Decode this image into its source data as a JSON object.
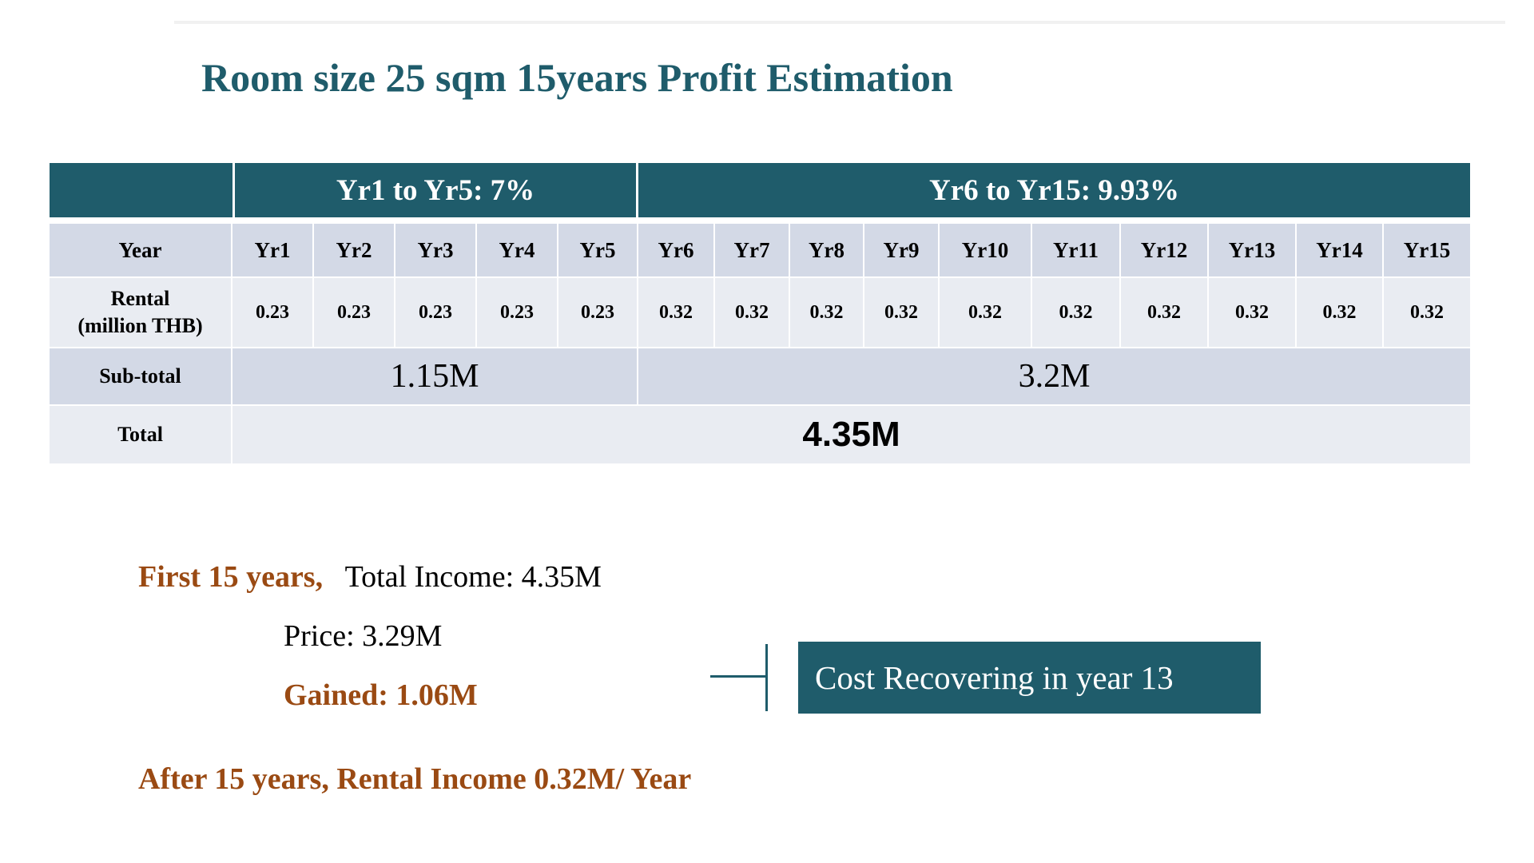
{
  "title": "Room size 25 sqm 15years Profit Estimation",
  "table": {
    "period_headers": [
      "Yr1 to Yr5: 7%",
      "Yr6 to Yr15: 9.93%"
    ],
    "year_label": "Year",
    "years": [
      "Yr1",
      "Yr2",
      "Yr3",
      "Yr4",
      "Yr5",
      "Yr6",
      "Yr7",
      "Yr8",
      "Yr9",
      "Yr10",
      "Yr11",
      "Yr12",
      "Yr13",
      "Yr14",
      "Yr15"
    ],
    "rental_label_line1": "Rental",
    "rental_label_line2": "(million THB)",
    "rental": [
      "0.23",
      "0.23",
      "0.23",
      "0.23",
      "0.23",
      "0.32",
      "0.32",
      "0.32",
      "0.32",
      "0.32",
      "0.32",
      "0.32",
      "0.32",
      "0.32",
      "0.32"
    ],
    "subtotal_label": "Sub-total",
    "subtotals": [
      "1.15M",
      "3.2M"
    ],
    "total_label": "Total",
    "total": "4.35M"
  },
  "summary": {
    "first_prefix": "First 15 years,",
    "total_income": "Total Income: 4.35M",
    "price": "Price: 3.29M",
    "gained": "Gained: 1.06M",
    "after": "After 15 years, Rental Income 0.32M/ Year"
  },
  "callout": "Cost Recovering in year 13",
  "colors": {
    "header_bg": "#1f5c6b",
    "row_dark": "#d3d9e6",
    "row_light": "#e9ecf2",
    "accent_orange": "#9a4a13",
    "title": "#1f5c6b"
  }
}
